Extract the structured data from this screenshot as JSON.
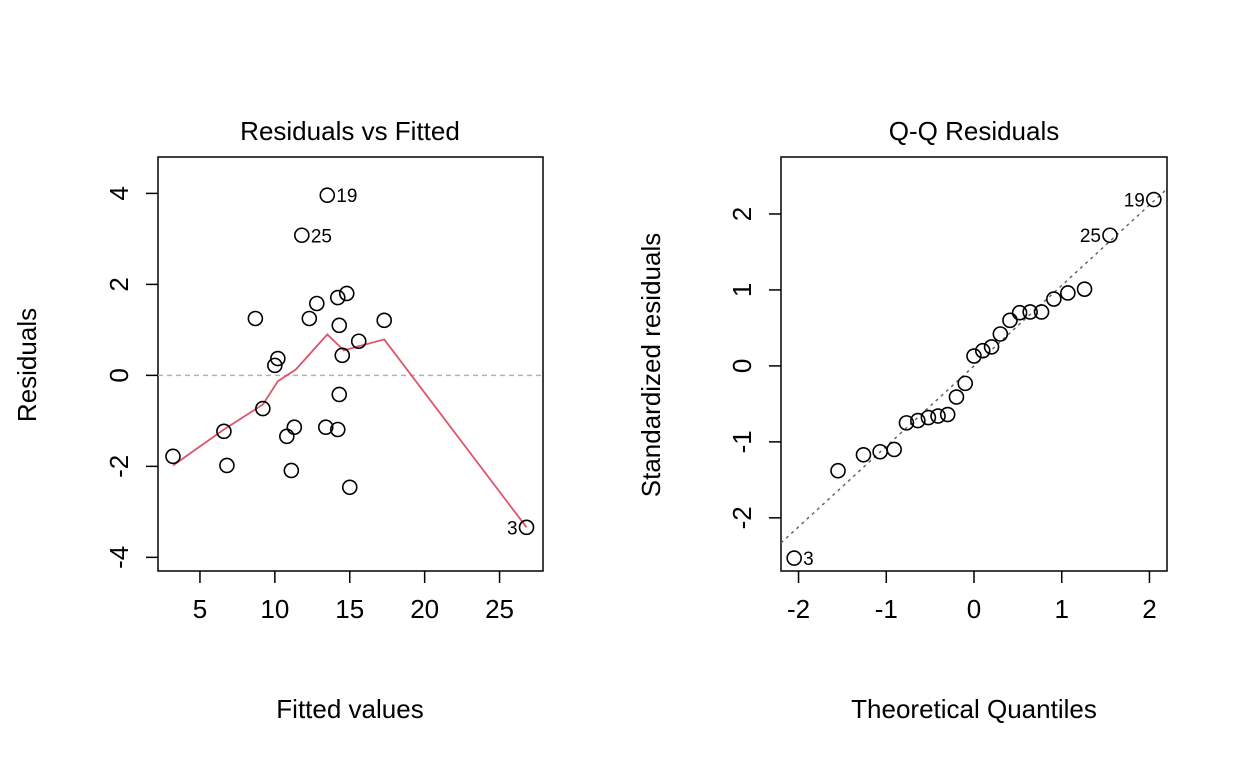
{
  "chart_data": [
    {
      "type": "scatter",
      "title": "Residuals vs Fitted",
      "xlabel": "Fitted values",
      "ylabel": "Residuals",
      "xlim": [
        2.2,
        27.9
      ],
      "ylim": [
        -4.3,
        4.8
      ],
      "xticks": [
        5,
        10,
        15,
        20,
        25
      ],
      "yticks": [
        -4,
        -2,
        0,
        2,
        4
      ],
      "xtick_labels": [
        "5",
        "10",
        "15",
        "20",
        "25"
      ],
      "ytick_labels": [
        "-4",
        "-2",
        "0",
        "2",
        "4"
      ],
      "reference_line": {
        "y": 0,
        "style": "dashed",
        "color": "#b3b3b3"
      },
      "smoother_color": "#DF536B",
      "points": [
        {
          "x": 3.2,
          "y": -1.78
        },
        {
          "x": 6.6,
          "y": -1.23
        },
        {
          "x": 6.8,
          "y": -1.98
        },
        {
          "x": 8.7,
          "y": 1.25
        },
        {
          "x": 9.2,
          "y": -0.73
        },
        {
          "x": 10.0,
          "y": 0.22
        },
        {
          "x": 10.2,
          "y": 0.37
        },
        {
          "x": 10.8,
          "y": -1.34
        },
        {
          "x": 11.3,
          "y": -1.14
        },
        {
          "x": 11.1,
          "y": -2.09
        },
        {
          "x": 11.8,
          "y": 3.08,
          "label": "25"
        },
        {
          "x": 12.3,
          "y": 1.25
        },
        {
          "x": 12.8,
          "y": 1.58
        },
        {
          "x": 13.4,
          "y": -1.14
        },
        {
          "x": 13.5,
          "y": 3.96,
          "label": "19"
        },
        {
          "x": 14.2,
          "y": -1.19
        },
        {
          "x": 14.2,
          "y": 1.71
        },
        {
          "x": 14.3,
          "y": 1.1
        },
        {
          "x": 14.3,
          "y": -0.42
        },
        {
          "x": 14.5,
          "y": 0.44
        },
        {
          "x": 14.8,
          "y": 1.8
        },
        {
          "x": 15.0,
          "y": -2.46
        },
        {
          "x": 15.6,
          "y": 0.75
        },
        {
          "x": 17.3,
          "y": 1.21
        },
        {
          "x": 26.8,
          "y": -3.34,
          "label": "3"
        }
      ],
      "smoother": [
        {
          "x": 3.2,
          "y": -1.98
        },
        {
          "x": 6.6,
          "y": -1.19
        },
        {
          "x": 9.2,
          "y": -0.64
        },
        {
          "x": 10.2,
          "y": -0.13
        },
        {
          "x": 11.4,
          "y": 0.13
        },
        {
          "x": 13.5,
          "y": 0.9
        },
        {
          "x": 14.6,
          "y": 0.55
        },
        {
          "x": 15.6,
          "y": 0.64
        },
        {
          "x": 17.3,
          "y": 0.79
        },
        {
          "x": 26.8,
          "y": -3.34
        }
      ]
    },
    {
      "type": "scatter",
      "title": "Q-Q Residuals",
      "xlabel": "Theoretical Quantiles",
      "ylabel": "Standardized residuals",
      "xlim": [
        -2.2,
        2.2
      ],
      "ylim": [
        -2.7,
        2.75
      ],
      "xticks": [
        -2,
        -1,
        0,
        1,
        2
      ],
      "yticks": [
        -2,
        -1,
        0,
        1,
        2
      ],
      "xtick_labels": [
        "-2",
        "-1",
        "0",
        "1",
        "2"
      ],
      "ytick_labels": [
        "-2",
        "-1",
        "0",
        "1",
        "2"
      ],
      "reference_line": {
        "from": [
          -2.2,
          -2.33
        ],
        "to": [
          2.2,
          2.33
        ],
        "style": "dotted",
        "color": "#666666"
      },
      "points": [
        {
          "x": -2.05,
          "y": -2.53,
          "label": "3"
        },
        {
          "x": -1.55,
          "y": -1.38
        },
        {
          "x": -1.26,
          "y": -1.17
        },
        {
          "x": -1.07,
          "y": -1.13
        },
        {
          "x": -0.91,
          "y": -1.1
        },
        {
          "x": -0.77,
          "y": -0.75
        },
        {
          "x": -0.64,
          "y": -0.72
        },
        {
          "x": -0.52,
          "y": -0.68
        },
        {
          "x": -0.41,
          "y": -0.66
        },
        {
          "x": -0.3,
          "y": -0.64
        },
        {
          "x": -0.2,
          "y": -0.41
        },
        {
          "x": -0.1,
          "y": -0.23
        },
        {
          "x": 0.0,
          "y": 0.13
        },
        {
          "x": 0.1,
          "y": 0.2
        },
        {
          "x": 0.2,
          "y": 0.25
        },
        {
          "x": 0.3,
          "y": 0.42
        },
        {
          "x": 0.41,
          "y": 0.6
        },
        {
          "x": 0.52,
          "y": 0.7
        },
        {
          "x": 0.64,
          "y": 0.71
        },
        {
          "x": 0.77,
          "y": 0.71
        },
        {
          "x": 0.91,
          "y": 0.88
        },
        {
          "x": 1.07,
          "y": 0.96
        },
        {
          "x": 1.26,
          "y": 1.01
        },
        {
          "x": 1.55,
          "y": 1.72,
          "label": "25"
        },
        {
          "x": 2.05,
          "y": 2.19,
          "label": "19"
        }
      ]
    }
  ]
}
